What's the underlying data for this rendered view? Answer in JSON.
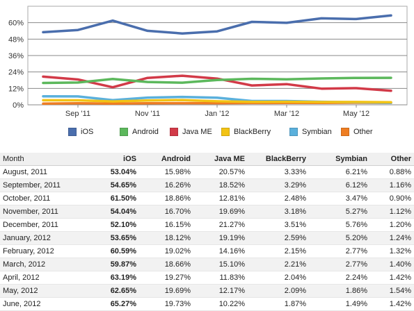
{
  "chart_data": {
    "type": "line",
    "title": "",
    "xlabel": "",
    "ylabel": "",
    "categories": [
      "August, 2011",
      "September, 2011",
      "October, 2011",
      "November, 2011",
      "December, 2011",
      "January, 2012",
      "February, 2012",
      "March, 2012",
      "April, 2012",
      "May, 2012",
      "June, 2012"
    ],
    "x_tick_labels": [
      {
        "index": 1,
        "label": "Sep '11"
      },
      {
        "index": 3,
        "label": "Nov '11"
      },
      {
        "index": 5,
        "label": "Jan '12"
      },
      {
        "index": 7,
        "label": "Mar '12"
      },
      {
        "index": 9,
        "label": "May '12"
      }
    ],
    "ylim": [
      0,
      72
    ],
    "y_ticks": [
      0,
      12,
      24,
      36,
      48,
      60
    ],
    "y_tick_labels": [
      "0%",
      "12%",
      "24%",
      "36%",
      "48%",
      "60%"
    ],
    "grid": true,
    "legend_position": "bottom",
    "series": [
      {
        "name": "iOS",
        "color": "#4a6ead",
        "values": [
          53.04,
          54.65,
          61.5,
          54.04,
          52.1,
          53.65,
          60.59,
          59.87,
          63.19,
          62.65,
          65.27
        ]
      },
      {
        "name": "Android",
        "color": "#5cb85c",
        "values": [
          15.98,
          16.26,
          18.86,
          16.7,
          16.15,
          18.12,
          19.02,
          18.66,
          19.27,
          19.69,
          19.73
        ]
      },
      {
        "name": "Java ME",
        "color": "#d23a48",
        "values": [
          20.57,
          18.52,
          12.81,
          19.69,
          21.27,
          19.19,
          14.16,
          15.1,
          11.83,
          12.17,
          10.22
        ]
      },
      {
        "name": "BlackBerry",
        "color": "#f2c314",
        "values": [
          3.33,
          3.29,
          2.48,
          3.18,
          3.51,
          2.59,
          2.15,
          2.21,
          2.04,
          2.09,
          1.87
        ]
      },
      {
        "name": "Symbian",
        "color": "#5ab0dc",
        "values": [
          6.21,
          6.12,
          3.47,
          5.27,
          5.76,
          5.2,
          2.77,
          2.77,
          2.24,
          1.86,
          1.49
        ]
      },
      {
        "name": "Other",
        "color": "#ee7d22",
        "values": [
          0.88,
          1.16,
          0.9,
          1.12,
          1.2,
          1.24,
          1.32,
          1.4,
          1.42,
          1.54,
          1.42
        ]
      }
    ]
  },
  "table": {
    "headers": [
      "Month",
      "iOS",
      "Android",
      "Java ME",
      "BlackBerry",
      "Symbian",
      "Other"
    ],
    "rows": [
      [
        "August, 2011",
        "53.04%",
        "15.98%",
        "20.57%",
        "3.33%",
        "6.21%",
        "0.88%"
      ],
      [
        "September, 2011",
        "54.65%",
        "16.26%",
        "18.52%",
        "3.29%",
        "6.12%",
        "1.16%"
      ],
      [
        "October, 2011",
        "61.50%",
        "18.86%",
        "12.81%",
        "2.48%",
        "3.47%",
        "0.90%"
      ],
      [
        "November, 2011",
        "54.04%",
        "16.70%",
        "19.69%",
        "3.18%",
        "5.27%",
        "1.12%"
      ],
      [
        "December, 2011",
        "52.10%",
        "16.15%",
        "21.27%",
        "3.51%",
        "5.76%",
        "1.20%"
      ],
      [
        "January, 2012",
        "53.65%",
        "18.12%",
        "19.19%",
        "2.59%",
        "5.20%",
        "1.24%"
      ],
      [
        "February, 2012",
        "60.59%",
        "19.02%",
        "14.16%",
        "2.15%",
        "2.77%",
        "1.32%"
      ],
      [
        "March, 2012",
        "59.87%",
        "18.66%",
        "15.10%",
        "2.21%",
        "2.77%",
        "1.40%"
      ],
      [
        "April, 2012",
        "63.19%",
        "19.27%",
        "11.83%",
        "2.04%",
        "2.24%",
        "1.42%"
      ],
      [
        "May, 2012",
        "62.65%",
        "19.69%",
        "12.17%",
        "2.09%",
        "1.86%",
        "1.54%"
      ],
      [
        "June, 2012",
        "65.27%",
        "19.73%",
        "10.22%",
        "1.87%",
        "1.49%",
        "1.42%"
      ]
    ]
  }
}
